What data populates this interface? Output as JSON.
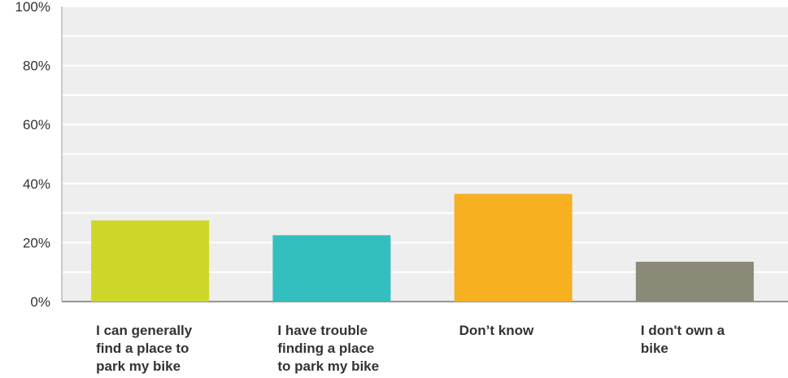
{
  "chart_data": {
    "type": "bar",
    "categories": [
      [
        "I can generally",
        "find a place to",
        "park my bike"
      ],
      [
        "I have trouble",
        "finding a place",
        "to park my bike"
      ],
      [
        "Don’t know"
      ],
      [
        "I don't own a",
        "bike"
      ]
    ],
    "values": [
      27.5,
      22.5,
      36.5,
      13.5
    ],
    "colors": [
      "#cfd62a",
      "#34bfbf",
      "#f6b020",
      "#8b8a78"
    ],
    "ylim": [
      0,
      100
    ],
    "yticks": [
      0,
      20,
      40,
      60,
      80,
      100
    ],
    "ytick_labels": [
      "0%",
      "20%",
      "40%",
      "60%",
      "80%",
      "100%"
    ],
    "grid": true,
    "plot_background": "#eeeeee",
    "title": "",
    "xlabel": "",
    "ylabel": ""
  }
}
